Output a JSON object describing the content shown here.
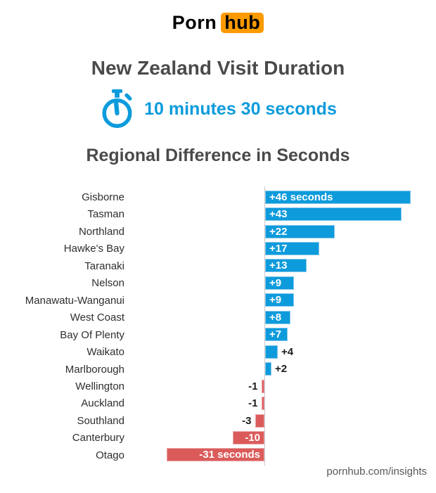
{
  "logo": {
    "text_plain": "Porn",
    "text_boxed": "hub"
  },
  "header": {
    "title": "New Zealand Visit Duration",
    "duration_value": "10 minutes 30 seconds"
  },
  "footer": {
    "site_label": "pornhub.com/insights"
  },
  "colors": {
    "brand_orange": "#fc9a00",
    "accent_blue": "#0d9bdc",
    "accent_blue_border": "#84c7ea",
    "negative_red": "#db5b5b",
    "negative_red_border": "#e9a6a6",
    "heading_gray": "#4a4a4a",
    "label_dark": "#2e2e2e",
    "axis_gray": "#c9c9c9",
    "footer_gray": "#58585a"
  },
  "chart_data": {
    "type": "bar",
    "orientation": "horizontal",
    "title": "Regional Difference in Seconds",
    "unit": "seconds",
    "baseline": 0,
    "xlim": [
      -31,
      46
    ],
    "grid": false,
    "legend": false,
    "categories": [
      "Gisborne",
      "Tasman",
      "Northland",
      "Hawke's Bay",
      "Taranaki",
      "Nelson",
      "Manawatu-Wanganui",
      "West Coast",
      "Bay Of Plenty",
      "Waikato",
      "Marlborough",
      "Wellington",
      "Auckland",
      "Southland",
      "Canterbury",
      "Otago"
    ],
    "values": [
      46,
      43,
      22,
      17,
      13,
      9,
      9,
      8,
      7,
      4,
      2,
      -1,
      -1,
      -3,
      -10,
      -31
    ],
    "value_labels": [
      "+46 seconds",
      "+43",
      "+22",
      "+17",
      "+13",
      "+9",
      "+9",
      "+8",
      "+7",
      "+4",
      "+2",
      "-1",
      "-1",
      "-3",
      "-10",
      "-31 seconds"
    ],
    "value_label_placement": [
      "inside",
      "inside",
      "inside",
      "inside",
      "inside",
      "inside",
      "inside",
      "inside",
      "inside",
      "outside",
      "outside",
      "outside",
      "outside",
      "outside",
      "inside",
      "inside"
    ],
    "positive_color": "#0d9bdc",
    "negative_color": "#db5b5b"
  }
}
